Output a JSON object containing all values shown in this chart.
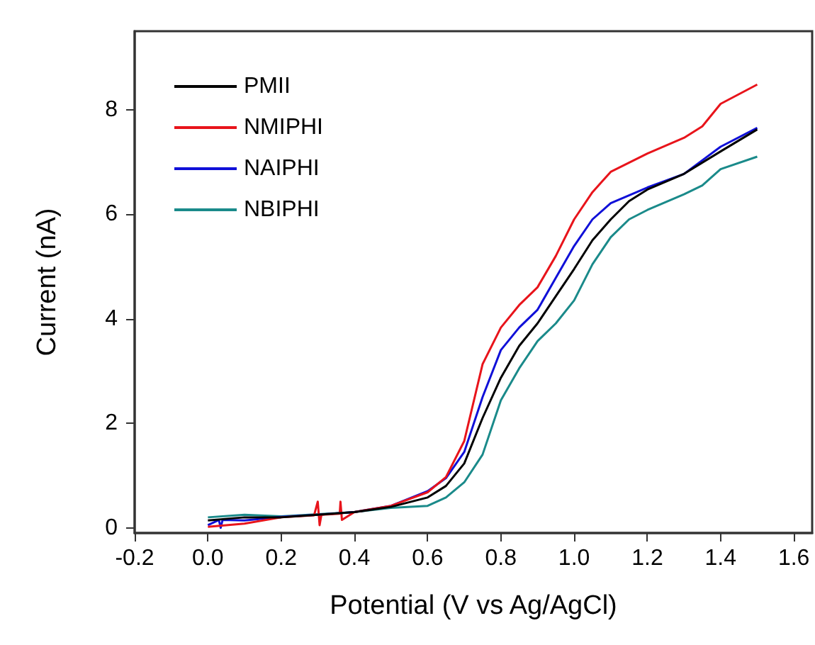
{
  "chart_data": {
    "type": "line",
    "xlabel": "Potential (V vs Ag/AgCl)",
    "ylabel": "Current (nA)",
    "xlim": [
      -0.2,
      1.65
    ],
    "xticks": [
      {
        "value": -0.2,
        "label": "-0.2"
      },
      {
        "value": 0,
        "label": "0.0"
      },
      {
        "value": 0.2,
        "label": "0.2"
      },
      {
        "value": 0.4,
        "label": "0.4"
      },
      {
        "value": 0.6,
        "label": "0.6"
      },
      {
        "value": 0.8,
        "label": "0.8"
      },
      {
        "value": 1,
        "label": "1.0"
      },
      {
        "value": 1.2,
        "label": "1.2"
      },
      {
        "value": 1.4,
        "label": "1.4"
      },
      {
        "value": 1.6,
        "label": "1.6"
      }
    ],
    "ylim": [
      -0.1,
      9.5
    ],
    "yticks": [
      0,
      2,
      4,
      6,
      8
    ],
    "grid": false,
    "legend": "top left",
    "marker": "none",
    "line_style": "solid",
    "series": [
      {
        "name": "PMII",
        "color": "#000000",
        "x": [
          0,
          0.1,
          0.2,
          0.3,
          0.4,
          0.5,
          0.6,
          0.65,
          0.7,
          0.75,
          0.8,
          0.85,
          0.9,
          0.95,
          1.0,
          1.05,
          1.1,
          1.15,
          1.2,
          1.3,
          1.4,
          1.5
        ],
        "values": [
          0.14,
          0.2,
          0.2,
          0.25,
          0.3,
          0.4,
          0.58,
          0.8,
          1.23,
          2.1,
          2.87,
          3.48,
          3.91,
          4.43,
          4.95,
          5.5,
          5.9,
          6.25,
          6.47,
          6.77,
          7.2,
          7.62
        ]
      },
      {
        "name": "NMIPHI",
        "color": "#e8141b",
        "x": [
          0,
          0.1,
          0.2,
          0.29,
          0.3,
          0.305,
          0.31,
          0.36,
          0.362,
          0.366,
          0.4,
          0.5,
          0.6,
          0.65,
          0.7,
          0.75,
          0.8,
          0.85,
          0.9,
          0.95,
          1.0,
          1.05,
          1.1,
          1.2,
          1.3,
          1.35,
          1.4,
          1.5
        ],
        "values": [
          0.02,
          0.08,
          0.2,
          0.24,
          0.5,
          0.05,
          0.25,
          0.27,
          0.5,
          0.15,
          0.3,
          0.42,
          0.68,
          0.97,
          1.66,
          3.13,
          3.83,
          4.26,
          4.6,
          5.2,
          5.9,
          6.42,
          6.81,
          7.16,
          7.46,
          7.68,
          8.11,
          8.48
        ]
      },
      {
        "name": "NAIPHI",
        "color": "#1010d8",
        "x": [
          0,
          0.03,
          0.035,
          0.04,
          0.1,
          0.2,
          0.3,
          0.4,
          0.5,
          0.6,
          0.65,
          0.7,
          0.75,
          0.8,
          0.85,
          0.9,
          0.95,
          1.0,
          1.05,
          1.1,
          1.2,
          1.3,
          1.4,
          1.5
        ],
        "values": [
          0.05,
          0.15,
          0.0,
          0.15,
          0.14,
          0.21,
          0.25,
          0.3,
          0.42,
          0.7,
          0.95,
          1.45,
          2.5,
          3.4,
          3.83,
          4.17,
          4.78,
          5.39,
          5.9,
          6.21,
          6.51,
          6.77,
          7.29,
          7.65
        ]
      },
      {
        "name": "NBIPHI",
        "color": "#1a8a8a",
        "x": [
          0,
          0.1,
          0.2,
          0.3,
          0.4,
          0.5,
          0.6,
          0.65,
          0.7,
          0.75,
          0.8,
          0.85,
          0.9,
          0.95,
          1.0,
          1.05,
          1.1,
          1.15,
          1.2,
          1.3,
          1.35,
          1.4,
          1.5
        ],
        "values": [
          0.2,
          0.25,
          0.22,
          0.26,
          0.3,
          0.38,
          0.42,
          0.58,
          0.87,
          1.4,
          2.44,
          3.05,
          3.57,
          3.91,
          4.35,
          5.04,
          5.56,
          5.9,
          6.08,
          6.38,
          6.55,
          6.86,
          7.1
        ]
      }
    ]
  }
}
